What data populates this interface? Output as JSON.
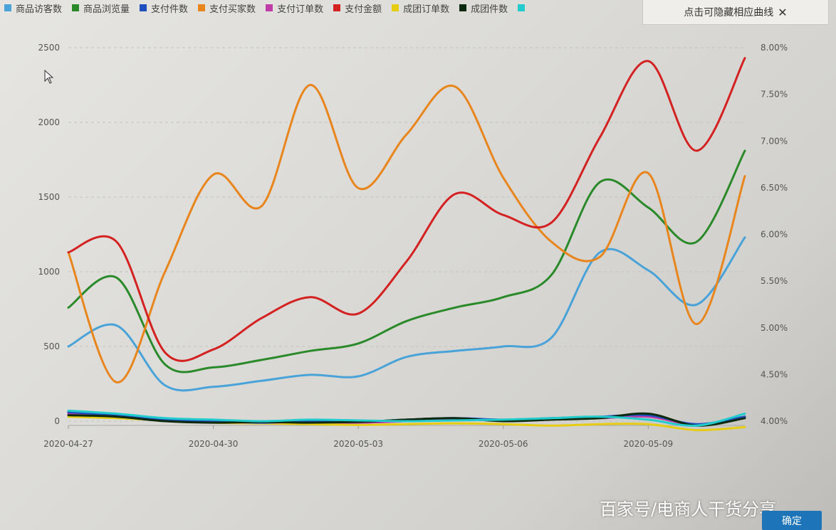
{
  "legend": {
    "items": [
      {
        "label": "商品访客数",
        "color": "#4aa3d8"
      },
      {
        "label": "商品浏览量",
        "color": "#2a8a2a"
      },
      {
        "label": "支付件数",
        "color": "#1f4fbf"
      },
      {
        "label": "支付买家数",
        "color": "#e8851d"
      },
      {
        "label": "支付订单数",
        "color": "#c03ca8"
      },
      {
        "label": "支付金额",
        "color": "#d42121"
      },
      {
        "label": "成团订单数",
        "color": "#e6cd12"
      },
      {
        "label": "成团件数",
        "color": "#0e2a0e"
      },
      {
        "label": "",
        "color": "#22cccc"
      }
    ]
  },
  "hide_tip": {
    "label": "点击可隐藏相应曲线",
    "close_icon": "close-icon"
  },
  "watermark": "百家号/电商人干货分享",
  "confirm_button": "确定",
  "chart_data": {
    "type": "line",
    "x": [
      "2020-04-27",
      "2020-04-28",
      "2020-04-29",
      "2020-04-30",
      "2020-05-01",
      "2020-05-02",
      "2020-05-03",
      "2020-05-04",
      "2020-05-05",
      "2020-05-06",
      "2020-05-07",
      "2020-05-08",
      "2020-05-09",
      "2020-05-10",
      "2020-05-11"
    ],
    "x_ticks": [
      "2020-04-27",
      "2020-04-30",
      "2020-05-03",
      "2020-05-06",
      "2020-05-09"
    ],
    "y_left": {
      "ticks": [
        0,
        500,
        1000,
        1500,
        2000,
        2500
      ],
      "lim": [
        0,
        2500
      ]
    },
    "y_right": {
      "ticks": [
        "4.00%",
        "4.50%",
        "5.00%",
        "5.50%",
        "6.00%",
        "6.50%",
        "7.00%",
        "7.50%",
        "8.00%"
      ],
      "lim": [
        4.0,
        8.0
      ]
    },
    "grid": true,
    "series": [
      {
        "name": "商品访客数",
        "axis": "left",
        "color": "#4aa3d8",
        "values": [
          500,
          640,
          240,
          230,
          270,
          310,
          300,
          430,
          470,
          500,
          560,
          1130,
          1010,
          780,
          1230
        ]
      },
      {
        "name": "商品浏览量",
        "axis": "left",
        "color": "#2a8a2a",
        "values": [
          760,
          960,
          380,
          360,
          410,
          470,
          520,
          670,
          760,
          830,
          980,
          1600,
          1430,
          1200,
          1810
        ]
      },
      {
        "name": "支付件数",
        "axis": "left",
        "color": "#1f4fbf",
        "values": [
          60,
          40,
          10,
          0,
          -10,
          0,
          -5,
          10,
          20,
          10,
          20,
          30,
          40,
          -20,
          30
        ]
      },
      {
        "name": "支付买家数",
        "axis": "left",
        "color": "#e8851d",
        "values": [
          1130,
          260,
          1000,
          1650,
          1440,
          2250,
          1560,
          1920,
          2240,
          1630,
          1200,
          1100,
          1660,
          650,
          1640
        ]
      },
      {
        "name": "支付订单数",
        "axis": "left",
        "color": "#c03ca8",
        "values": [
          50,
          30,
          10,
          -5,
          -10,
          -5,
          -10,
          0,
          10,
          5,
          15,
          20,
          30,
          -25,
          25
        ]
      },
      {
        "name": "支付金额",
        "axis": "left",
        "color": "#d42121",
        "values": [
          1130,
          1200,
          460,
          480,
          690,
          830,
          720,
          1070,
          1520,
          1380,
          1330,
          1900,
          2410,
          1810,
          2430
        ]
      },
      {
        "name": "成团订单数",
        "axis": "left",
        "color": "#e6cd12",
        "values": [
          30,
          20,
          5,
          -10,
          -15,
          -20,
          -25,
          -20,
          -15,
          -20,
          -30,
          -20,
          -20,
          -60,
          -40
        ]
      },
      {
        "name": "成团件数",
        "axis": "left",
        "color": "#0e2a0e",
        "values": [
          40,
          30,
          0,
          -10,
          -5,
          -10,
          -5,
          10,
          20,
          0,
          10,
          20,
          50,
          -30,
          20
        ]
      },
      {
        "name": "",
        "axis": "left",
        "color": "#22cccc",
        "values": [
          70,
          50,
          20,
          10,
          0,
          10,
          5,
          0,
          5,
          10,
          20,
          30,
          10,
          -30,
          50
        ]
      }
    ]
  }
}
